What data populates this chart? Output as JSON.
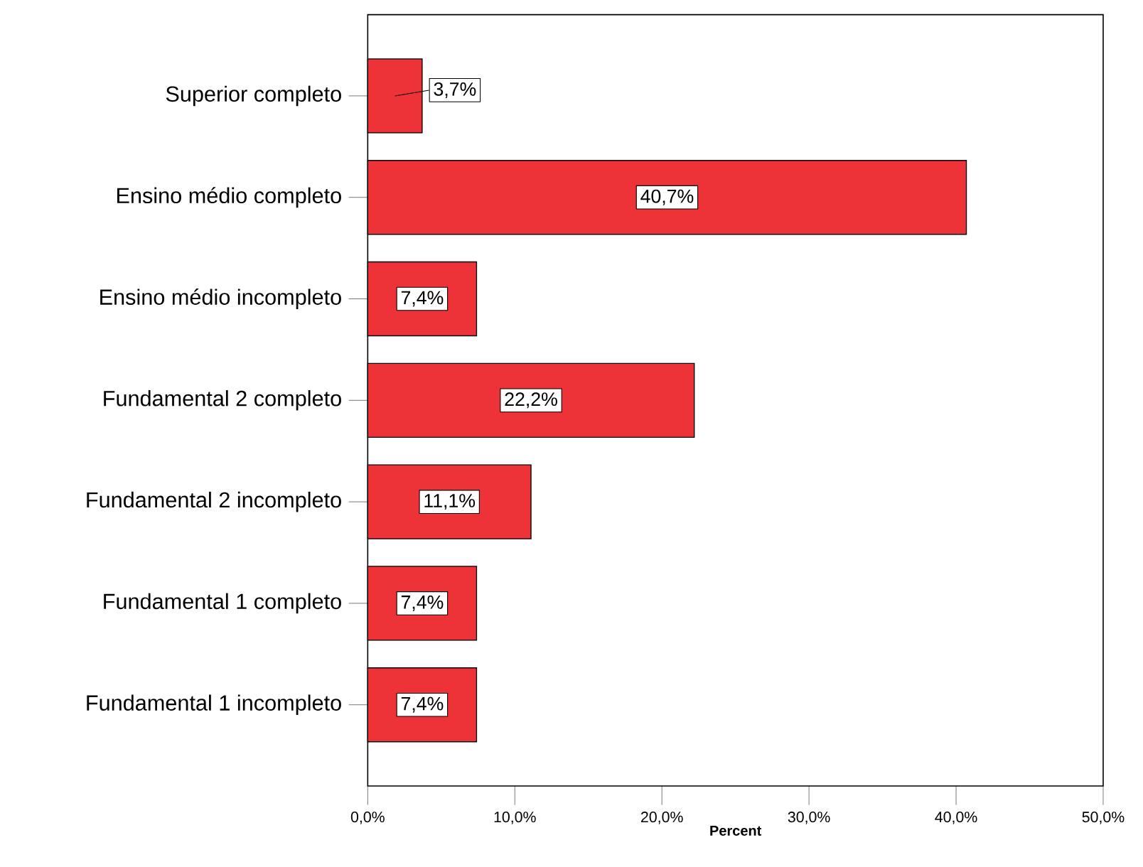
{
  "chart_data": {
    "type": "bar",
    "orientation": "horizontal",
    "xlabel": "Percent",
    "categories": [
      "Superior completo",
      "Ensino médio completo",
      "Ensino médio incompleto",
      "Fundamental 2 completo",
      "Fundamental 2 incompleto",
      "Fundamental 1 completo",
      "Fundamental 1 incompleto"
    ],
    "values": [
      3.7,
      40.7,
      7.4,
      22.2,
      11.1,
      7.4,
      7.4
    ],
    "value_labels": [
      "3,7%",
      "40,7%",
      "7,4%",
      "22,2%",
      "11,1%",
      "7,4%",
      "7,4%"
    ],
    "color": "#ee3338",
    "xlim": [
      0,
      50
    ],
    "xticks": [
      {
        "value": 0,
        "label": "0,0%"
      },
      {
        "value": 10,
        "label": "10,0%"
      },
      {
        "value": 20,
        "label": "20,0%"
      },
      {
        "value": 30,
        "label": "30,0%"
      },
      {
        "value": 40,
        "label": "40,0%"
      },
      {
        "value": 50,
        "label": "50,0%"
      }
    ],
    "grid": false
  }
}
